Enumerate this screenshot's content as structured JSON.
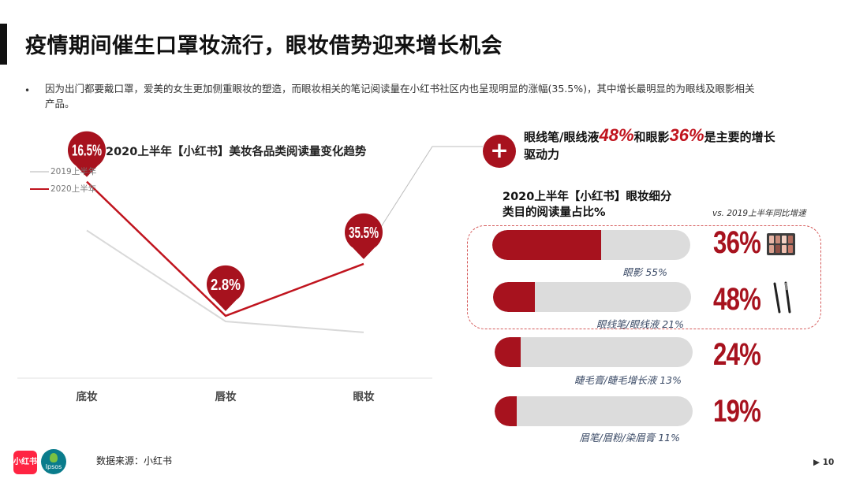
{
  "page": {
    "title": "疫情期间催生口罩妆流行，眼妆借势迎来增长机会",
    "bullet": "因为出门都要戴口罩，爱美的女生更加侧重眼妆的塑造，而眼妆相关的笔记阅读量在小红书社区内也呈现明显的涨幅(35.5%)，其中增长最明显的为眼线及眼影相关产品。",
    "bullet_marker": "•"
  },
  "chart_data": [
    {
      "type": "line",
      "title": "2020上半年【小红书】美妆各品类阅读量变化趋势",
      "categories": [
        "底妆",
        "唇妆",
        "眼妆"
      ],
      "series": [
        {
          "name": "2019上半年",
          "values": [
            100,
            69.2,
            65.5
          ],
          "color": "#d9d9d9"
        },
        {
          "name": "2020上半年",
          "values": [
            116.5,
            71.1,
            88.7
          ],
          "color": "#c0141e"
        }
      ],
      "annotations": [
        "16.5%",
        "2.8%",
        "35.5%"
      ],
      "ylim": [
        50,
        130
      ],
      "grid": false,
      "legend": "top-left"
    },
    {
      "type": "bar",
      "title": "2020上半年【小红书】眼妆细分类目的阅读量占比%",
      "categories": [
        "眼影",
        "眼线笔/眼线液",
        "睫毛膏/睫毛增长液",
        "眉笔/眉粉/染眉膏"
      ],
      "values": [
        55,
        21,
        13,
        11
      ],
      "value_labels": [
        "眼影 55%",
        "眼线笔/眼线液 21%",
        "睫毛膏/睫毛增长液 13%",
        "眉笔/眉粉/染眉膏 11%"
      ],
      "growth_label": "vs. 2019上半年同比增速",
      "growth": [
        "36%",
        "48%",
        "24%",
        "19%"
      ],
      "xlim": [
        0,
        100
      ]
    }
  ],
  "callout": {
    "plus": "+",
    "part1": "眼线笔/眼线液",
    "num1": "48%",
    "part2": "和眼影",
    "num2": "36%",
    "part3": "是主要的增长驱动力"
  },
  "footer": {
    "source": "数据来源：小红书",
    "page_marker": "▶",
    "page_number": "10",
    "logo_xhs": "小红书",
    "logo_ipsos": "Ipsos"
  },
  "colors": {
    "accent": "#a7121e",
    "series_2020": "#c0141e",
    "series_2019": "#d9d9d9",
    "track": "#dcdcdc"
  }
}
